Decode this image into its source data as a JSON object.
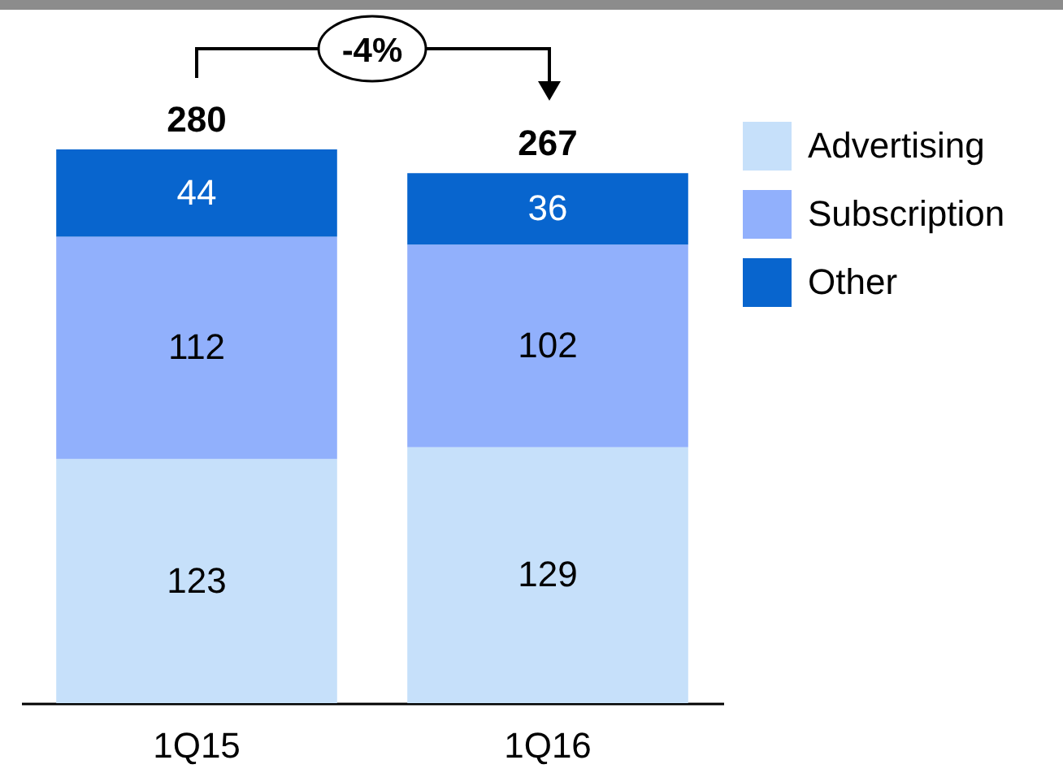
{
  "chart_data": {
    "type": "bar",
    "stacked": true,
    "data_labels": true,
    "legend": "top right",
    "categories": [
      "1Q15",
      "1Q16"
    ],
    "series": [
      {
        "name": "Advertising",
        "color": "#c6e0fa",
        "values": [
          123,
          129
        ]
      },
      {
        "name": "Subscription",
        "color": "#91b0fc",
        "values": [
          112,
          102
        ]
      },
      {
        "name": "Other",
        "color": "#0865ce",
        "values": [
          44,
          36
        ]
      }
    ],
    "totals": [
      "280",
      "267"
    ],
    "annotations": [
      "-4%"
    ]
  }
}
